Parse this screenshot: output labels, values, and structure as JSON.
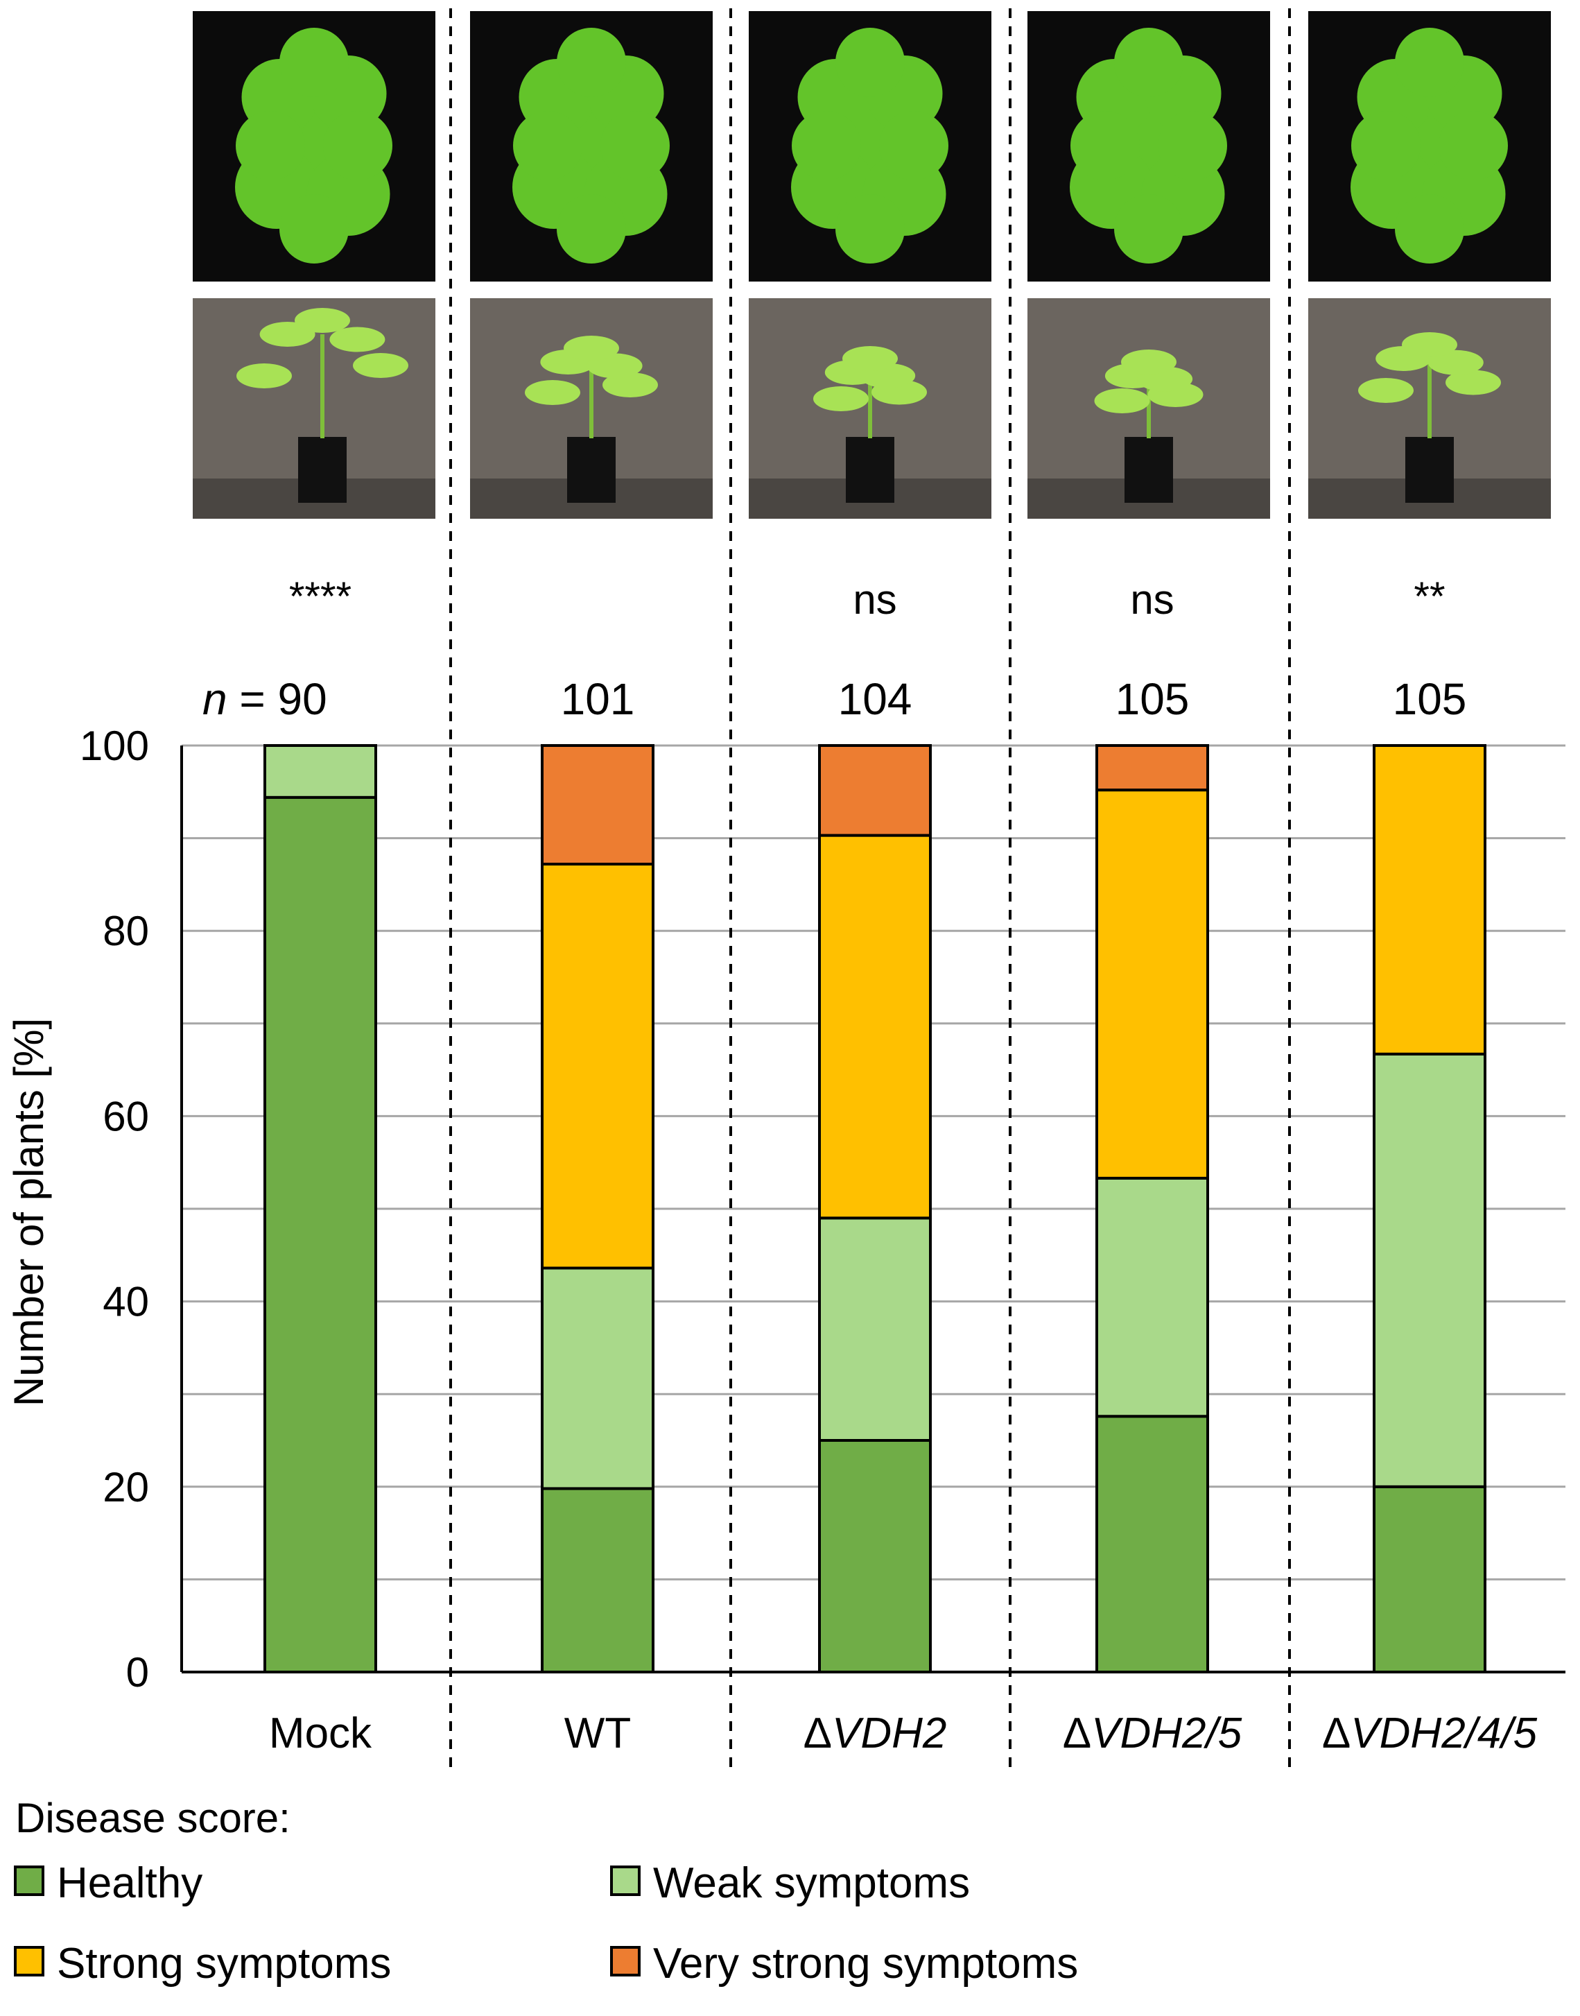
{
  "chart_data": {
    "type": "bar",
    "stacked": true,
    "ylabel": "Number of plants [%]",
    "ylim": [
      0,
      100
    ],
    "yticks": [
      0,
      20,
      40,
      60,
      80,
      100
    ],
    "grid": true,
    "categories": [
      "Mock",
      "WT",
      "ΔVDH2",
      "ΔVDH2/5",
      "ΔVDH2/4/5"
    ],
    "category_italic": [
      false,
      false,
      true,
      true,
      true
    ],
    "n_prefix": "n",
    "n_values": [
      "= 90",
      "101",
      "104",
      "105",
      "105"
    ],
    "significance": [
      "****",
      "",
      "ns",
      "ns",
      "**"
    ],
    "series": [
      {
        "name": "Healthy",
        "color": "#70ad47",
        "values": [
          94.4,
          19.8,
          25.0,
          27.6,
          20.0
        ]
      },
      {
        "name": "Weak symptoms",
        "color": "#a9d98a",
        "values": [
          5.6,
          23.8,
          24.0,
          25.7,
          46.7
        ]
      },
      {
        "name": "Strong symptoms",
        "color": "#ffc000",
        "values": [
          0,
          43.6,
          41.3,
          41.9,
          33.3
        ]
      },
      {
        "name": "Very strong symptoms",
        "color": "#ed7d31",
        "values": [
          0,
          12.8,
          9.7,
          4.8,
          0
        ]
      }
    ],
    "legend_title": "Disease score:",
    "legend_position": "bottom"
  }
}
